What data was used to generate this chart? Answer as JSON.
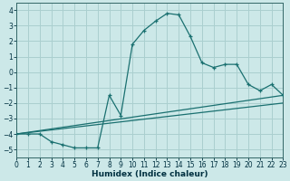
{
  "xlabel": "Humidex (Indice chaleur)",
  "ylabel": "",
  "bg_color": "#cce8e8",
  "grid_color": "#aacfcf",
  "line_color": "#1a7070",
  "xlim": [
    0,
    23
  ],
  "ylim": [
    -5.5,
    4.5
  ],
  "xticks": [
    0,
    1,
    2,
    3,
    4,
    5,
    6,
    7,
    8,
    9,
    10,
    11,
    12,
    13,
    14,
    15,
    16,
    17,
    18,
    19,
    20,
    21,
    22,
    23
  ],
  "yticks": [
    -5,
    -4,
    -3,
    -2,
    -1,
    0,
    1,
    2,
    3,
    4
  ],
  "line1_x": [
    0,
    1,
    2,
    3,
    4,
    5,
    6,
    7,
    8,
    9,
    10,
    11,
    12,
    13,
    14,
    15,
    16,
    17,
    18,
    19,
    20,
    21,
    22,
    23
  ],
  "line1_y": [
    -4.0,
    -4.0,
    -4.0,
    -4.5,
    -4.7,
    -4.9,
    -4.9,
    -4.9,
    -1.5,
    -2.8,
    1.8,
    2.7,
    3.3,
    3.8,
    3.7,
    2.3,
    0.6,
    0.3,
    0.5,
    0.5,
    -0.8,
    -1.2,
    -0.8,
    -1.5
  ],
  "line2_x": [
    0,
    23
  ],
  "line2_y": [
    -4.0,
    -1.5
  ],
  "line3_x": [
    0,
    23
  ],
  "line3_y": [
    -4.0,
    -2.0
  ],
  "tick_fontsize": 5.5,
  "xlabel_fontsize": 6.5
}
